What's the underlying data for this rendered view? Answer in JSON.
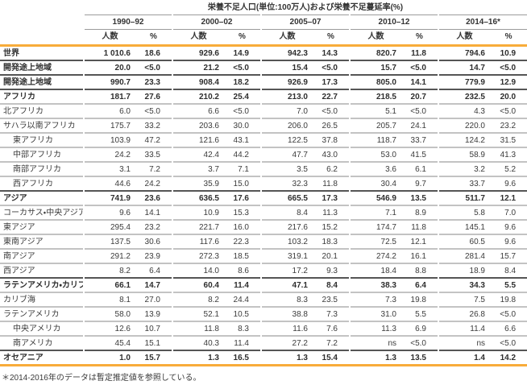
{
  "table": {
    "title": "栄養不足人口(単位:100万人)および栄養不足蔓延率(%)",
    "periods": [
      "1990–92",
      "2000–02",
      "2005–07",
      "2010–12",
      "2014–16*"
    ],
    "sub_headers": {
      "count": "人数",
      "percent": "%"
    },
    "rows": [
      {
        "name": "世界",
        "bold": true,
        "indent": 0,
        "values": [
          "1 010.6",
          "18.6",
          "929.6",
          "14.9",
          "942.3",
          "14.3",
          "820.7",
          "11.8",
          "794.6",
          "10.9"
        ]
      },
      {
        "name": "開発途上地域",
        "bold": true,
        "indent": 0,
        "values": [
          "20.0",
          "<5.0",
          "21.2",
          "<5.0",
          "15.4",
          "<5.0",
          "15.7",
          "<5.0",
          "14.7",
          "<5.0"
        ]
      },
      {
        "name": "開発途上地域",
        "bold": true,
        "indent": 0,
        "values": [
          "990.7",
          "23.3",
          "908.4",
          "18.2",
          "926.9",
          "17.3",
          "805.0",
          "14.1",
          "779.9",
          "12.9"
        ]
      },
      {
        "name": "アフリカ",
        "bold": true,
        "indent": 0,
        "values": [
          "181.7",
          "27.6",
          "210.2",
          "25.4",
          "213.0",
          "22.7",
          "218.5",
          "20.7",
          "232.5",
          "20.0"
        ]
      },
      {
        "name": "北アフリカ",
        "bold": false,
        "indent": 0,
        "values": [
          "6.0",
          "<5.0",
          "6.6",
          "<5.0",
          "7.0",
          "<5.0",
          "5.1",
          "<5.0",
          "4.3",
          "<5.0"
        ]
      },
      {
        "name": "サハラ以南アフリカ",
        "bold": false,
        "indent": 0,
        "values": [
          "175.7",
          "33.2",
          "203.6",
          "30.0",
          "206.0",
          "26.5",
          "205.7",
          "24.1",
          "220.0",
          "23.2"
        ]
      },
      {
        "name": "東アフリカ",
        "bold": false,
        "indent": 1,
        "values": [
          "103.9",
          "47.2",
          "121.6",
          "43.1",
          "122.5",
          "37.8",
          "118.7",
          "33.7",
          "124.2",
          "31.5"
        ]
      },
      {
        "name": "中部アフリカ",
        "bold": false,
        "indent": 1,
        "values": [
          "24.2",
          "33.5",
          "42.4",
          "44.2",
          "47.7",
          "43.0",
          "53.0",
          "41.5",
          "58.9",
          "41.3"
        ]
      },
      {
        "name": "南部アフリカ",
        "bold": false,
        "indent": 1,
        "values": [
          "3.1",
          "7.2",
          "3.7",
          "7.1",
          "3.5",
          "6.2",
          "3.6",
          "6.1",
          "3.2",
          "5.2"
        ]
      },
      {
        "name": "西アフリカ",
        "bold": false,
        "indent": 1,
        "values": [
          "44.6",
          "24.2",
          "35.9",
          "15.0",
          "32.3",
          "11.8",
          "30.4",
          "9.7",
          "33.7",
          "9.6"
        ]
      },
      {
        "name": "アジア",
        "bold": true,
        "indent": 0,
        "values": [
          "741.9",
          "23.6",
          "636.5",
          "17.6",
          "665.5",
          "17.3",
          "546.9",
          "13.5",
          "511.7",
          "12.1"
        ]
      },
      {
        "name": "コーカサス・中央アジア",
        "bold": false,
        "indent": 0,
        "values": [
          "9.6",
          "14.1",
          "10.9",
          "15.3",
          "8.4",
          "11.3",
          "7.1",
          "8.9",
          "5.8",
          "7.0"
        ]
      },
      {
        "name": "東アジア",
        "bold": false,
        "indent": 0,
        "values": [
          "295.4",
          "23.2",
          "221.7",
          "16.0",
          "217.6",
          "15.2",
          "174.7",
          "11.8",
          "145.1",
          "9.6"
        ]
      },
      {
        "name": "東南アジア",
        "bold": false,
        "indent": 0,
        "values": [
          "137.5",
          "30.6",
          "117.6",
          "22.3",
          "103.2",
          "18.3",
          "72.5",
          "12.1",
          "60.5",
          "9.6"
        ]
      },
      {
        "name": "南アジア",
        "bold": false,
        "indent": 0,
        "values": [
          "291.2",
          "23.9",
          "272.3",
          "18.5",
          "319.1",
          "20.1",
          "274.2",
          "16.1",
          "281.4",
          "15.7"
        ]
      },
      {
        "name": "西アジア",
        "bold": false,
        "indent": 0,
        "values": [
          "8.2",
          "6.4",
          "14.0",
          "8.6",
          "17.2",
          "9.3",
          "18.4",
          "8.8",
          "18.9",
          "8.4"
        ]
      },
      {
        "name": "ラテンアメリカ・カリブ海",
        "bold": true,
        "indent": 0,
        "values": [
          "66.1",
          "14.7",
          "60.4",
          "11.4",
          "47.1",
          "8.4",
          "38.3",
          "6.4",
          "34.3",
          "5.5"
        ]
      },
      {
        "name": "カリブ海",
        "bold": false,
        "indent": 0,
        "values": [
          "8.1",
          "27.0",
          "8.2",
          "24.4",
          "8.3",
          "23.5",
          "7.3",
          "19.8",
          "7.5",
          "19.8"
        ]
      },
      {
        "name": "ラテンアメリカ",
        "bold": false,
        "indent": 0,
        "values": [
          "58.0",
          "13.9",
          "52.1",
          "10.5",
          "38.8",
          "7.3",
          "31.0",
          "5.5",
          "26.8",
          "<5.0"
        ]
      },
      {
        "name": "中央アメリカ",
        "bold": false,
        "indent": 1,
        "values": [
          "12.6",
          "10.7",
          "11.8",
          "8.3",
          "11.6",
          "7.6",
          "11.3",
          "6.9",
          "11.4",
          "6.6"
        ]
      },
      {
        "name": "南アメリカ",
        "bold": false,
        "indent": 1,
        "values": [
          "45.4",
          "15.1",
          "40.3",
          "11.4",
          "27.2",
          "7.2",
          "ns",
          "<5.0",
          "ns",
          "<5.0"
        ]
      },
      {
        "name": "オセアニア",
        "bold": true,
        "indent": 0,
        "values": [
          "1.0",
          "15.7",
          "1.3",
          "16.5",
          "1.3",
          "15.4",
          "1.3",
          "13.5",
          "1.4",
          "14.2"
        ]
      }
    ],
    "footnote": "＊2014-2016年のデータは暫定推定値を参照している。"
  },
  "colors": {
    "accent_orange": "#F8AC3A",
    "line_dark": "#555555",
    "line_light": "#c3c3c3",
    "text": "#3b3b3b"
  }
}
